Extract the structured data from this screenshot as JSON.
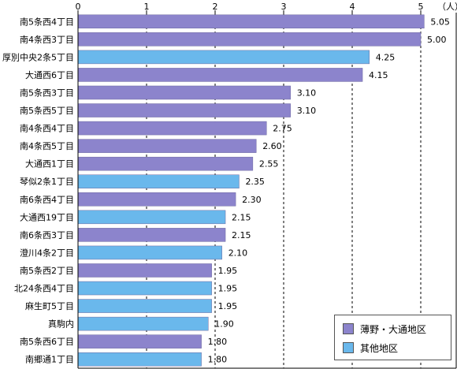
{
  "chart_data": {
    "type": "bar",
    "orientation": "horizontal",
    "unit_label": "（人）",
    "xlim": [
      0,
      5.3
    ],
    "x_ticks": [
      "0",
      "1",
      "2",
      "3",
      "4",
      "5"
    ],
    "grid": true,
    "legend_position": "bottom-right",
    "categories": [
      "南5条西4丁目",
      "南4条西3丁目",
      "厚別中央2条5丁目",
      "大通西6丁目",
      "南5条西3丁目",
      "南5条西5丁目",
      "南4条西4丁目",
      "南4条西5丁目",
      "大通西1丁目",
      "琴似2条1丁目",
      "南6条西4丁目",
      "大通西19丁目",
      "南6条西3丁目",
      "澄川4条2丁目",
      "南5条西2丁目",
      "北24条西4丁目",
      "麻生町5丁目",
      "真駒内",
      "南5条西6丁目",
      "南郷通1丁目"
    ],
    "values": [
      5.05,
      5.0,
      4.25,
      4.15,
      3.1,
      3.1,
      2.75,
      2.6,
      2.55,
      2.35,
      2.3,
      2.15,
      2.15,
      2.1,
      1.95,
      1.95,
      1.95,
      1.9,
      1.8,
      1.8
    ],
    "value_labels": [
      "5.05",
      "5.00",
      "4.25",
      "4.15",
      "3.10",
      "3.10",
      "2.75",
      "2.60",
      "2.55",
      "2.35",
      "2.30",
      "2.15",
      "2.15",
      "2.10",
      "1.95",
      "1.95",
      "1.95",
      "1.90",
      "1.80",
      "1.80"
    ],
    "groups": [
      "a",
      "a",
      "b",
      "a",
      "a",
      "a",
      "a",
      "a",
      "a",
      "b",
      "a",
      "b",
      "a",
      "b",
      "a",
      "b",
      "b",
      "b",
      "a",
      "b"
    ],
    "series": [
      {
        "key": "a",
        "name": "薄野・大通地区",
        "color": "#8c84cc"
      },
      {
        "key": "b",
        "name": "其他地区",
        "color": "#6ab8ec"
      }
    ]
  }
}
